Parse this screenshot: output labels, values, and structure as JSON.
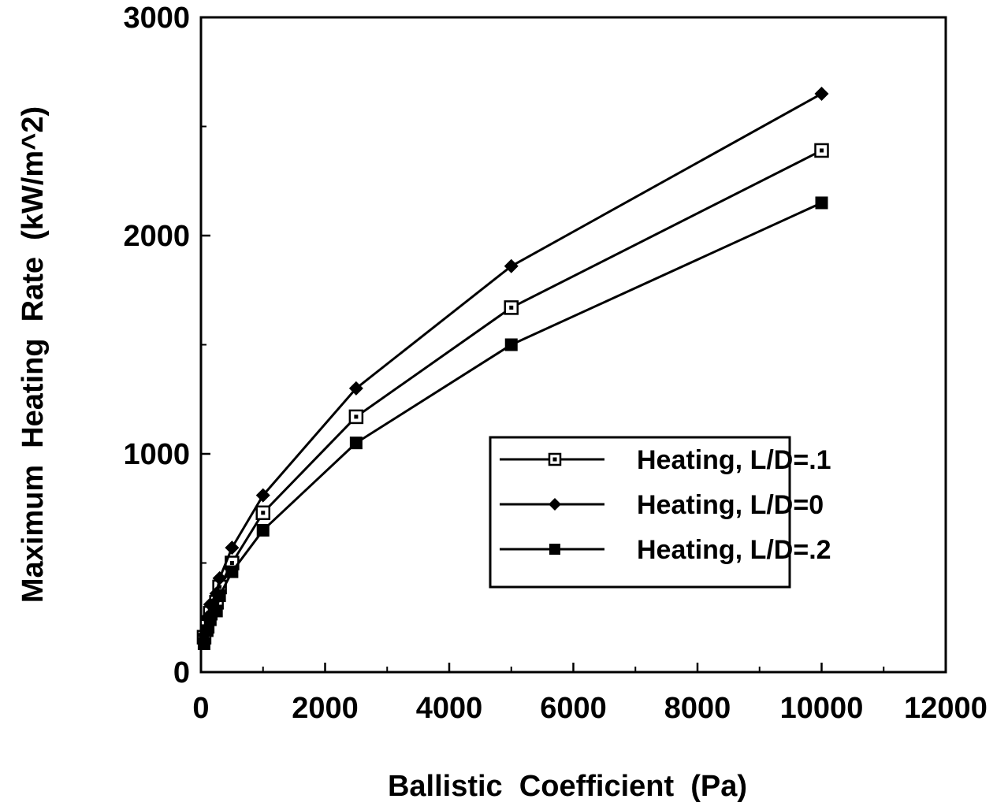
{
  "chart_data": {
    "type": "line",
    "title": "",
    "xlabel": "Ballistic  Coefficient  (Pa)",
    "ylabel": "Maximum  Heating  Rate  (kW/m^2)",
    "xlim": [
      0,
      12000
    ],
    "ylim": [
      0,
      3000
    ],
    "x_ticks": [
      0,
      2000,
      4000,
      6000,
      8000,
      10000,
      12000
    ],
    "y_ticks": [
      0,
      1000,
      2000,
      3000
    ],
    "grid": false,
    "legend_position": "lower-right",
    "series": [
      {
        "name": "Heating, L/D=.1",
        "marker": "open-square",
        "color": "#000000",
        "x": [
          50,
          100,
          150,
          250,
          300,
          500,
          1000,
          2500,
          5000,
          10000
        ],
        "y": [
          160,
          210,
          270,
          320,
          390,
          500,
          730,
          1170,
          1670,
          2390
        ]
      },
      {
        "name": "Heating, L/D=0",
        "marker": "filled-diamond",
        "color": "#000000",
        "x": [
          50,
          100,
          150,
          250,
          300,
          500,
          1000,
          2500,
          5000,
          10000
        ],
        "y": [
          170,
          250,
          310,
          360,
          430,
          570,
          810,
          1300,
          1860,
          2650
        ]
      },
      {
        "name": "Heating, L/D=.2",
        "marker": "filled-square",
        "color": "#000000",
        "x": [
          50,
          100,
          150,
          250,
          300,
          500,
          1000,
          2500,
          5000,
          10000
        ],
        "y": [
          130,
          190,
          240,
          280,
          350,
          460,
          650,
          1050,
          1500,
          2150
        ]
      }
    ]
  }
}
